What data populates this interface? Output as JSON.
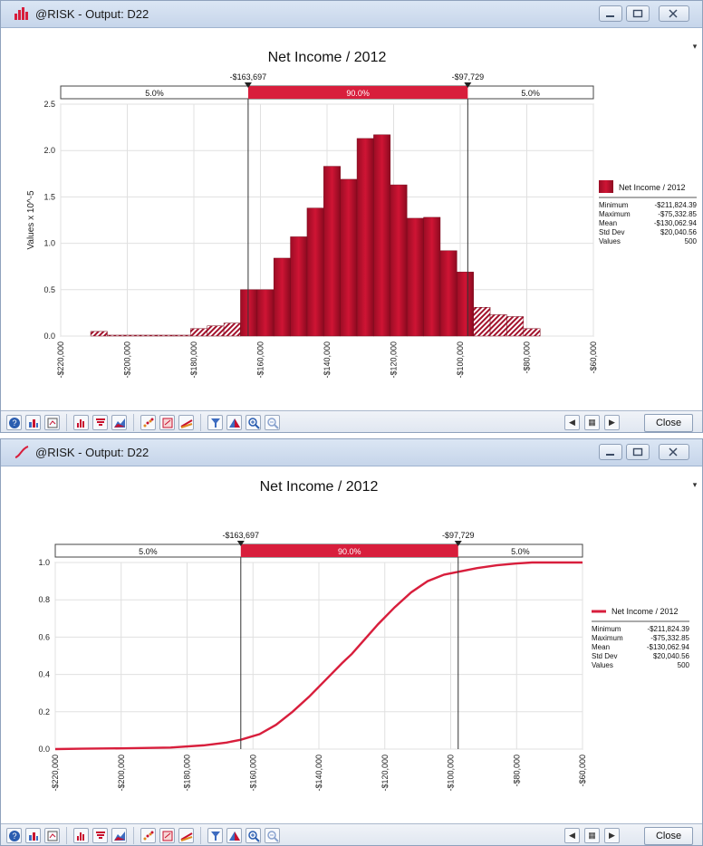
{
  "windows": [
    {
      "title": "@RISK - Output: D22",
      "chart_data": {
        "type": "bar",
        "title": "Net Income / 2012",
        "ylabel": "Values x 10^-5",
        "xlim": [
          -220000,
          -60000
        ],
        "ylim": [
          0,
          2.5
        ],
        "y_ticks": [
          "0.0",
          "0.5",
          "1.0",
          "1.5",
          "2.0",
          "2.5"
        ],
        "x_ticks": [
          "-$220,000",
          "-$200,000",
          "-$180,000",
          "-$160,000",
          "-$140,000",
          "-$120,000",
          "-$100,000",
          "-$80,000",
          "-$60,000"
        ],
        "bin_width": 5000,
        "bins": [
          [
            -211000,
            0.05
          ],
          [
            -206000,
            0.01
          ],
          [
            -201000,
            0.01
          ],
          [
            -196000,
            0.01
          ],
          [
            -191000,
            0.01
          ],
          [
            -186000,
            0.01
          ],
          [
            -181000,
            0.08
          ],
          [
            -176000,
            0.11
          ],
          [
            -171000,
            0.14
          ],
          [
            -166000,
            0.5
          ],
          [
            -161000,
            0.5
          ],
          [
            -156000,
            0.84
          ],
          [
            -151000,
            1.07
          ],
          [
            -146000,
            1.38
          ],
          [
            -141000,
            1.83
          ],
          [
            -136000,
            1.69
          ],
          [
            -131000,
            2.13
          ],
          [
            -126000,
            2.17
          ],
          [
            -121000,
            1.63
          ],
          [
            -116000,
            1.27
          ],
          [
            -111000,
            1.28
          ],
          [
            -106000,
            0.92
          ],
          [
            -101000,
            0.69
          ],
          [
            -96000,
            0.31
          ],
          [
            -91000,
            0.23
          ],
          [
            -86000,
            0.21
          ],
          [
            -81000,
            0.08
          ]
        ],
        "delimiters": {
          "left_value": -163697,
          "right_value": -97729,
          "left_label": "-$163,697",
          "right_label": "-$97,729",
          "left_pct": "5.0%",
          "mid_pct": "90.0%",
          "right_pct": "5.0%"
        },
        "legend": {
          "series": "Net Income / 2012",
          "placement": "right",
          "stats": [
            {
              "label": "Minimum",
              "value": "-$211,824.39"
            },
            {
              "label": "Maximum",
              "value": "-$75,332.85"
            },
            {
              "label": "Mean",
              "value": "-$130,062.94"
            },
            {
              "label": "Std Dev",
              "value": "$20,040.56"
            },
            {
              "label": "Values",
              "value": "500"
            }
          ]
        },
        "colors": {
          "bar": "#c8102e",
          "bar_dark": "#8a0a20",
          "band": "#d81e3c"
        }
      },
      "close_label": "Close"
    },
    {
      "title": "@RISK - Output: D22",
      "chart_data": {
        "type": "line",
        "title": "Net Income / 2012",
        "xlim": [
          -220000,
          -60000
        ],
        "ylim": [
          0,
          1.0
        ],
        "y_ticks": [
          "0.0",
          "0.2",
          "0.4",
          "0.6",
          "0.8",
          "1.0"
        ],
        "x_ticks": [
          "-$220,000",
          "-$200,000",
          "-$180,000",
          "-$160,000",
          "-$140,000",
          "-$120,000",
          "-$100,000",
          "-$80,000",
          "-$60,000"
        ],
        "points": [
          [
            -220000,
            0.0
          ],
          [
            -212000,
            0.002
          ],
          [
            -200000,
            0.004
          ],
          [
            -185000,
            0.008
          ],
          [
            -175000,
            0.02
          ],
          [
            -168000,
            0.035
          ],
          [
            -163697,
            0.05
          ],
          [
            -158000,
            0.08
          ],
          [
            -153000,
            0.13
          ],
          [
            -148000,
            0.2
          ],
          [
            -143000,
            0.28
          ],
          [
            -138000,
            0.37
          ],
          [
            -133000,
            0.46
          ],
          [
            -130000,
            0.51
          ],
          [
            -127000,
            0.57
          ],
          [
            -122000,
            0.67
          ],
          [
            -117000,
            0.76
          ],
          [
            -112000,
            0.84
          ],
          [
            -107000,
            0.9
          ],
          [
            -102000,
            0.935
          ],
          [
            -97729,
            0.95
          ],
          [
            -92000,
            0.97
          ],
          [
            -86000,
            0.985
          ],
          [
            -80000,
            0.995
          ],
          [
            -75332,
            1.0
          ],
          [
            -60000,
            1.0
          ]
        ],
        "delimiters": {
          "left_value": -163697,
          "right_value": -97729,
          "left_label": "-$163,697",
          "right_label": "-$97,729",
          "left_pct": "5.0%",
          "mid_pct": "90.0%",
          "right_pct": "5.0%"
        },
        "legend": {
          "series": "Net Income / 2012",
          "placement": "right",
          "stats": [
            {
              "label": "Minimum",
              "value": "-$211,824.39"
            },
            {
              "label": "Maximum",
              "value": "-$75,332.85"
            },
            {
              "label": "Mean",
              "value": "-$130,062.94"
            },
            {
              "label": "Std Dev",
              "value": "$20,040.56"
            },
            {
              "label": "Values",
              "value": "500"
            }
          ]
        },
        "colors": {
          "line": "#d81e3c",
          "band": "#d81e3c"
        }
      },
      "close_label": "Close"
    }
  ]
}
